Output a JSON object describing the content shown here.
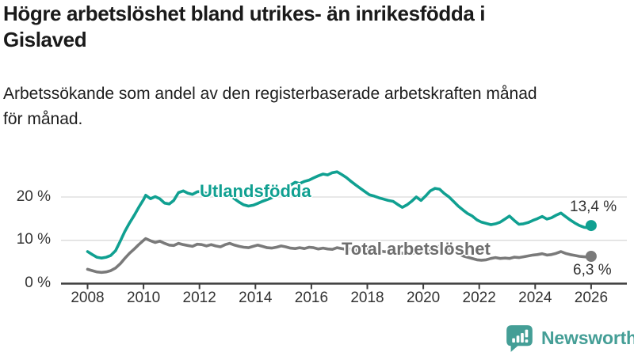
{
  "header": {
    "title": "Högre arbetslöshet bland utrikes- än inrikesfödda i Gislaved",
    "title_lines": [
      "Högre arbetslöshet bland utrikes- än inrikesfödda i",
      "Gislaved"
    ],
    "subtitle": "Arbetssökande som andel av den registerbaserade arbetskraften månad för månad.",
    "subtitle_lines": [
      "Arbetssökande som andel av den registerbaserade arbetskraften månad",
      "för månad."
    ]
  },
  "chart_data": {
    "type": "line",
    "unit": "%",
    "grid": true,
    "x_axis": {
      "ticks": [
        2008,
        2010,
        2012,
        2014,
        2016,
        2018,
        2020,
        2022,
        2024,
        2026
      ],
      "labels": [
        "2008",
        "2010",
        "2012",
        "2014",
        "2016",
        "2018",
        "2020",
        "2022",
        "2024",
        "2026"
      ],
      "range": [
        2007.9,
        2027.3
      ]
    },
    "y_axis": {
      "ticks": [
        0,
        10,
        20
      ],
      "tick_labels": [
        "0 %",
        "10 %",
        "20 %"
      ],
      "range": [
        0,
        27.5
      ]
    },
    "series": [
      {
        "name": "Utlandsfödda",
        "color": "#10a091",
        "end_label": "13,4 %",
        "end_value": 13.4,
        "points": [
          [
            2008.0,
            7.4
          ],
          [
            2008.17,
            6.7
          ],
          [
            2008.33,
            6.1
          ],
          [
            2008.5,
            5.9
          ],
          [
            2008.67,
            6.1
          ],
          [
            2008.83,
            6.5
          ],
          [
            2009.0,
            7.6
          ],
          [
            2009.17,
            9.8
          ],
          [
            2009.33,
            12.0
          ],
          [
            2009.5,
            14.0
          ],
          [
            2009.67,
            15.8
          ],
          [
            2009.83,
            17.6
          ],
          [
            2010.0,
            19.4
          ],
          [
            2010.08,
            20.4
          ],
          [
            2010.25,
            19.6
          ],
          [
            2010.42,
            20.1
          ],
          [
            2010.58,
            19.6
          ],
          [
            2010.75,
            18.6
          ],
          [
            2010.92,
            18.4
          ],
          [
            2011.08,
            19.2
          ],
          [
            2011.25,
            21.0
          ],
          [
            2011.42,
            21.4
          ],
          [
            2011.58,
            20.9
          ],
          [
            2011.75,
            20.6
          ],
          [
            2011.92,
            21.2
          ],
          [
            2012.08,
            21.3
          ],
          [
            2012.25,
            20.8
          ],
          [
            2012.42,
            21.1
          ],
          [
            2012.58,
            20.6
          ],
          [
            2012.75,
            20.4
          ],
          [
            2012.92,
            20.9
          ],
          [
            2013.08,
            20.5
          ],
          [
            2013.25,
            19.6
          ],
          [
            2013.42,
            18.8
          ],
          [
            2013.58,
            18.2
          ],
          [
            2013.75,
            17.9
          ],
          [
            2013.92,
            18.1
          ],
          [
            2014.08,
            18.5
          ],
          [
            2014.25,
            19.0
          ],
          [
            2014.42,
            19.4
          ],
          [
            2014.58,
            19.8
          ],
          [
            2014.75,
            20.4
          ],
          [
            2014.92,
            21.1
          ],
          [
            2015.08,
            21.8
          ],
          [
            2015.25,
            22.7
          ],
          [
            2015.42,
            23.4
          ],
          [
            2015.58,
            23.1
          ],
          [
            2015.75,
            23.6
          ],
          [
            2015.92,
            23.9
          ],
          [
            2016.08,
            24.4
          ],
          [
            2016.25,
            24.9
          ],
          [
            2016.42,
            25.3
          ],
          [
            2016.58,
            25.1
          ],
          [
            2016.75,
            25.6
          ],
          [
            2016.92,
            25.8
          ],
          [
            2017.08,
            25.2
          ],
          [
            2017.25,
            24.5
          ],
          [
            2017.42,
            23.6
          ],
          [
            2017.58,
            22.8
          ],
          [
            2017.75,
            22.0
          ],
          [
            2017.92,
            21.2
          ],
          [
            2018.08,
            20.5
          ],
          [
            2018.25,
            20.2
          ],
          [
            2018.42,
            19.8
          ],
          [
            2018.58,
            19.5
          ],
          [
            2018.75,
            19.2
          ],
          [
            2018.92,
            19.0
          ],
          [
            2019.08,
            18.3
          ],
          [
            2019.25,
            17.6
          ],
          [
            2019.42,
            18.2
          ],
          [
            2019.58,
            19.0
          ],
          [
            2019.75,
            20.0
          ],
          [
            2019.92,
            19.2
          ],
          [
            2020.08,
            20.2
          ],
          [
            2020.25,
            21.4
          ],
          [
            2020.42,
            22.0
          ],
          [
            2020.58,
            21.8
          ],
          [
            2020.75,
            20.8
          ],
          [
            2020.92,
            20.0
          ],
          [
            2021.08,
            19.0
          ],
          [
            2021.25,
            17.9
          ],
          [
            2021.42,
            17.0
          ],
          [
            2021.58,
            16.2
          ],
          [
            2021.75,
            15.6
          ],
          [
            2021.92,
            14.7
          ],
          [
            2022.08,
            14.2
          ],
          [
            2022.25,
            13.9
          ],
          [
            2022.42,
            13.6
          ],
          [
            2022.58,
            13.8
          ],
          [
            2022.75,
            14.2
          ],
          [
            2022.92,
            14.9
          ],
          [
            2023.08,
            15.6
          ],
          [
            2023.25,
            14.6
          ],
          [
            2023.42,
            13.7
          ],
          [
            2023.58,
            13.8
          ],
          [
            2023.75,
            14.1
          ],
          [
            2023.92,
            14.6
          ],
          [
            2024.08,
            15.0
          ],
          [
            2024.25,
            15.5
          ],
          [
            2024.42,
            14.9
          ],
          [
            2024.58,
            15.2
          ],
          [
            2024.75,
            15.8
          ],
          [
            2024.92,
            16.3
          ],
          [
            2025.08,
            15.5
          ],
          [
            2025.25,
            14.7
          ],
          [
            2025.42,
            14.0
          ],
          [
            2025.58,
            13.4
          ],
          [
            2025.75,
            13.0
          ],
          [
            2025.92,
            12.9
          ],
          [
            2026.0,
            13.4
          ]
        ]
      },
      {
        "name": "Total arbetslöshet",
        "color": "#7a7a7a",
        "end_label": "6,3 %",
        "end_value": 6.3,
        "points": [
          [
            2008.0,
            3.3
          ],
          [
            2008.17,
            3.0
          ],
          [
            2008.33,
            2.7
          ],
          [
            2008.5,
            2.6
          ],
          [
            2008.67,
            2.7
          ],
          [
            2008.83,
            3.0
          ],
          [
            2009.0,
            3.6
          ],
          [
            2009.17,
            4.6
          ],
          [
            2009.33,
            5.8
          ],
          [
            2009.5,
            7.0
          ],
          [
            2009.67,
            8.0
          ],
          [
            2009.83,
            9.0
          ],
          [
            2010.0,
            10.0
          ],
          [
            2010.08,
            10.4
          ],
          [
            2010.25,
            9.9
          ],
          [
            2010.42,
            9.5
          ],
          [
            2010.58,
            9.8
          ],
          [
            2010.75,
            9.3
          ],
          [
            2010.92,
            8.9
          ],
          [
            2011.08,
            8.8
          ],
          [
            2011.25,
            9.3
          ],
          [
            2011.42,
            9.0
          ],
          [
            2011.58,
            8.8
          ],
          [
            2011.75,
            8.6
          ],
          [
            2011.92,
            9.1
          ],
          [
            2012.08,
            9.0
          ],
          [
            2012.25,
            8.7
          ],
          [
            2012.42,
            9.0
          ],
          [
            2012.58,
            8.7
          ],
          [
            2012.75,
            8.5
          ],
          [
            2012.92,
            9.0
          ],
          [
            2013.08,
            9.3
          ],
          [
            2013.25,
            8.9
          ],
          [
            2013.42,
            8.6
          ],
          [
            2013.58,
            8.4
          ],
          [
            2013.75,
            8.3
          ],
          [
            2013.92,
            8.6
          ],
          [
            2014.08,
            8.9
          ],
          [
            2014.25,
            8.6
          ],
          [
            2014.42,
            8.3
          ],
          [
            2014.58,
            8.2
          ],
          [
            2014.75,
            8.4
          ],
          [
            2014.92,
            8.7
          ],
          [
            2015.08,
            8.5
          ],
          [
            2015.25,
            8.2
          ],
          [
            2015.42,
            8.1
          ],
          [
            2015.58,
            8.3
          ],
          [
            2015.75,
            8.1
          ],
          [
            2015.92,
            8.4
          ],
          [
            2016.08,
            8.3
          ],
          [
            2016.25,
            8.0
          ],
          [
            2016.42,
            8.2
          ],
          [
            2016.58,
            8.0
          ],
          [
            2016.75,
            7.9
          ],
          [
            2016.92,
            8.3
          ],
          [
            2017.08,
            8.1
          ],
          [
            2017.25,
            7.9
          ],
          [
            2017.42,
            8.0
          ],
          [
            2017.58,
            7.7
          ],
          [
            2017.75,
            7.6
          ],
          [
            2017.92,
            7.9
          ],
          [
            2018.08,
            7.7
          ],
          [
            2018.25,
            7.5
          ],
          [
            2018.42,
            7.6
          ],
          [
            2018.58,
            7.4
          ],
          [
            2018.75,
            7.3
          ],
          [
            2018.92,
            7.5
          ],
          [
            2019.08,
            7.2
          ],
          [
            2019.25,
            7.0
          ],
          [
            2019.42,
            7.1
          ],
          [
            2019.58,
            7.0
          ],
          [
            2019.75,
            7.2
          ],
          [
            2019.92,
            7.1
          ],
          [
            2020.08,
            7.4
          ],
          [
            2020.25,
            8.0
          ],
          [
            2020.42,
            8.5
          ],
          [
            2020.58,
            8.6
          ],
          [
            2020.75,
            8.3
          ],
          [
            2020.92,
            7.9
          ],
          [
            2021.08,
            7.4
          ],
          [
            2021.25,
            6.9
          ],
          [
            2021.42,
            6.4
          ],
          [
            2021.58,
            6.1
          ],
          [
            2021.75,
            5.8
          ],
          [
            2021.92,
            5.5
          ],
          [
            2022.08,
            5.4
          ],
          [
            2022.25,
            5.5
          ],
          [
            2022.42,
            5.8
          ],
          [
            2022.58,
            6.0
          ],
          [
            2022.75,
            5.8
          ],
          [
            2022.92,
            5.9
          ],
          [
            2023.08,
            5.8
          ],
          [
            2023.25,
            6.1
          ],
          [
            2023.42,
            6.0
          ],
          [
            2023.58,
            6.2
          ],
          [
            2023.75,
            6.4
          ],
          [
            2023.92,
            6.6
          ],
          [
            2024.08,
            6.7
          ],
          [
            2024.25,
            6.9
          ],
          [
            2024.42,
            6.6
          ],
          [
            2024.58,
            6.7
          ],
          [
            2024.75,
            7.0
          ],
          [
            2024.92,
            7.4
          ],
          [
            2025.08,
            7.0
          ],
          [
            2025.25,
            6.7
          ],
          [
            2025.42,
            6.5
          ],
          [
            2025.58,
            6.3
          ],
          [
            2025.75,
            6.2
          ],
          [
            2025.92,
            6.1
          ],
          [
            2026.0,
            6.3
          ]
        ]
      }
    ],
    "colors": {
      "grid": "#d9d9d9",
      "axis": "#3d3d3d",
      "tick_text": "#333333"
    }
  },
  "branding": {
    "logo_text": "Newsworthy",
    "logo_icon": "newsworthy-chart-pin-icon",
    "color": "#449e96"
  }
}
